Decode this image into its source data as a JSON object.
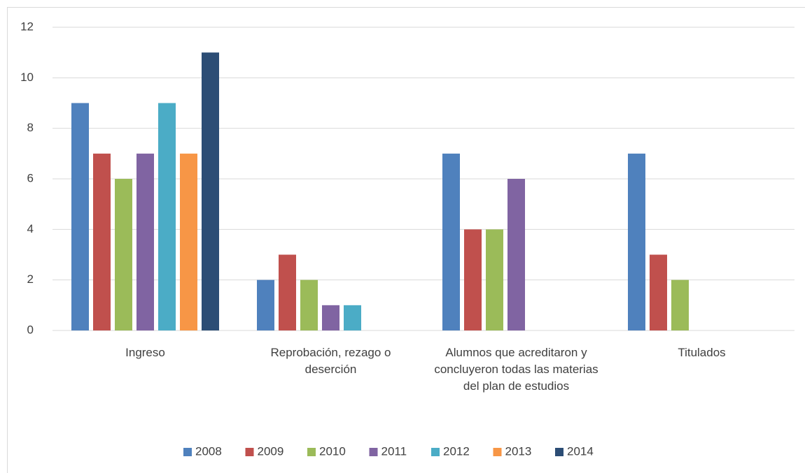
{
  "chart_data": {
    "type": "bar",
    "categories": [
      "Ingreso",
      "Reprobación, rezago o deserción",
      "Alumnos que acreditaron y concluyeron todas las materias del plan de estudios",
      "Titulados"
    ],
    "series": [
      {
        "name": "2008",
        "color": "#4f81bd",
        "values": [
          9,
          2,
          7,
          7
        ]
      },
      {
        "name": "2009",
        "color": "#c0504d",
        "values": [
          7,
          3,
          4,
          3
        ]
      },
      {
        "name": "2010",
        "color": "#9bbb59",
        "values": [
          6,
          2,
          4,
          2
        ]
      },
      {
        "name": "2011",
        "color": "#8064a2",
        "values": [
          7,
          1,
          6,
          null
        ]
      },
      {
        "name": "2012",
        "color": "#4bacc6",
        "values": [
          9,
          1,
          null,
          null
        ]
      },
      {
        "name": "2013",
        "color": "#f79646",
        "values": [
          7,
          null,
          null,
          null
        ]
      },
      {
        "name": "2014",
        "color": "#2c4d75",
        "values": [
          11,
          null,
          null,
          null
        ]
      }
    ],
    "ylim": [
      0,
      12
    ],
    "yticks": [
      0,
      2,
      4,
      6,
      8,
      10,
      12
    ],
    "grid": true,
    "legend": "bottom"
  }
}
